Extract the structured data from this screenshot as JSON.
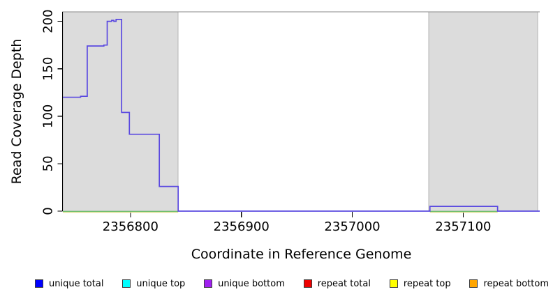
{
  "figure": {
    "background": "#ffffff"
  },
  "chart_data": {
    "type": "line",
    "title": "",
    "xlabel": "Coordinate in Reference Genome",
    "ylabel": "Read Coverage Depth",
    "xlim": [
      2356739,
      2357169
    ],
    "ylim": [
      0,
      210
    ],
    "x_ticks": [
      2356800,
      2356900,
      2357000,
      2357100
    ],
    "y_ticks": [
      0,
      50,
      100,
      150,
      200
    ],
    "grid": false,
    "legend_position": "bottom",
    "shaded_regions": [
      {
        "name": "repeat-region-left",
        "start": 2356739,
        "end": 2356843
      },
      {
        "name": "repeat-region-right",
        "start": 2357069,
        "end": 2357167
      }
    ],
    "coverage_steps": {
      "name": "unique total coverage",
      "color": "#5a49e0",
      "points": [
        [
          2356739,
          120
        ],
        [
          2356755,
          121
        ],
        [
          2356761,
          174
        ],
        [
          2356776,
          175
        ],
        [
          2356779,
          200
        ],
        [
          2356783,
          201
        ],
        [
          2356785,
          200
        ],
        [
          2356787,
          202
        ],
        [
          2356792,
          104
        ],
        [
          2356799,
          81
        ],
        [
          2356826,
          26
        ],
        [
          2356843,
          0
        ],
        [
          2357070,
          5
        ],
        [
          2357131,
          0
        ],
        [
          2357169,
          0
        ]
      ]
    },
    "zero_lines": [
      {
        "name": "repeat-zero-line",
        "color": "#e7e294",
        "y": 0,
        "offset": 1.8,
        "segments": [
          [
            2356739,
            2356843
          ],
          [
            2357070,
            2357131
          ]
        ]
      },
      {
        "name": "unique-zero-line",
        "color": "#6dbd6d",
        "y": 0,
        "offset": 0.4,
        "segments": [
          [
            2356739,
            2356843
          ],
          [
            2357070,
            2357131
          ]
        ]
      }
    ],
    "legend": [
      {
        "label": "unique total",
        "color": "#0000ff"
      },
      {
        "label": "unique top",
        "color": "#00ffff"
      },
      {
        "label": "unique bottom",
        "color": "#a020f0"
      },
      {
        "label": "repeat total",
        "color": "#ee0000"
      },
      {
        "label": "repeat top",
        "color": "#ffff00"
      },
      {
        "label": "repeat bottom",
        "color": "#ffa500"
      }
    ],
    "colors": {
      "region_fill": "#dcdcdc",
      "region_border": "#b4b4b4",
      "top_border": "#8a8a8a",
      "axis": "#000000",
      "swatch_border": "#3a3a3a"
    }
  }
}
